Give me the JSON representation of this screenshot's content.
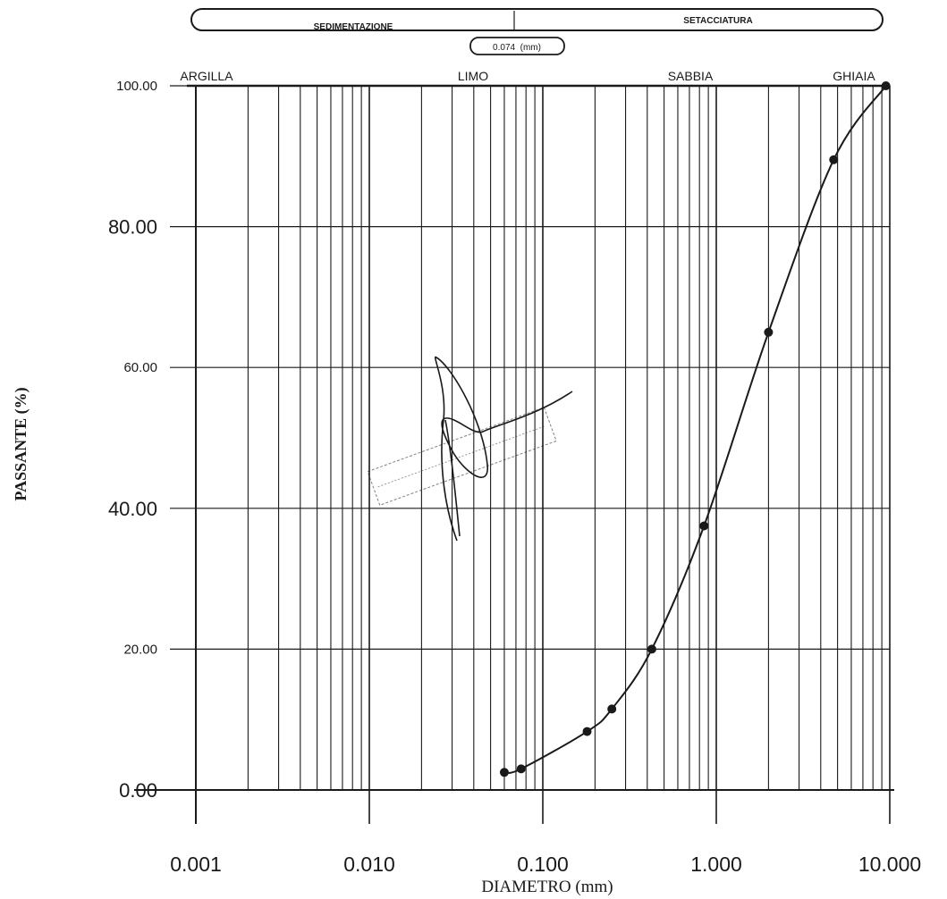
{
  "chart_data": {
    "type": "line",
    "xscale": "log",
    "title_bar": {
      "left": "SEDIMENTAZIONE",
      "right": "SETACCIATURA",
      "divider": "0.074  (mm)"
    },
    "zones": [
      "ARGILLA",
      "LIMO",
      "SABBIA",
      "GHIAIA"
    ],
    "xlabel": "DIAMETRO (mm)",
    "ylabel": "PASSANTE (%)",
    "xlim": [
      0.001,
      10
    ],
    "ylim": [
      0,
      100
    ],
    "xtick_labels": [
      "0.001",
      "0.010",
      "0.100",
      "1.000",
      "10.000"
    ],
    "ytick_labels": [
      "0.00",
      "20.00",
      "40.00",
      "60.00",
      "80.00",
      "100.00"
    ],
    "grid": true,
    "series": [
      {
        "x": [
          0.06,
          0.075,
          0.18,
          0.25,
          0.425,
          0.85,
          2.0,
          4.75,
          9.5
        ],
        "y": [
          2.5,
          3.0,
          8.3,
          11.5,
          20.0,
          37.5,
          65.0,
          89.5,
          100.0
        ]
      }
    ],
    "colors": {
      "ink": "#1a1a1a",
      "paper": "#ffffff"
    }
  }
}
